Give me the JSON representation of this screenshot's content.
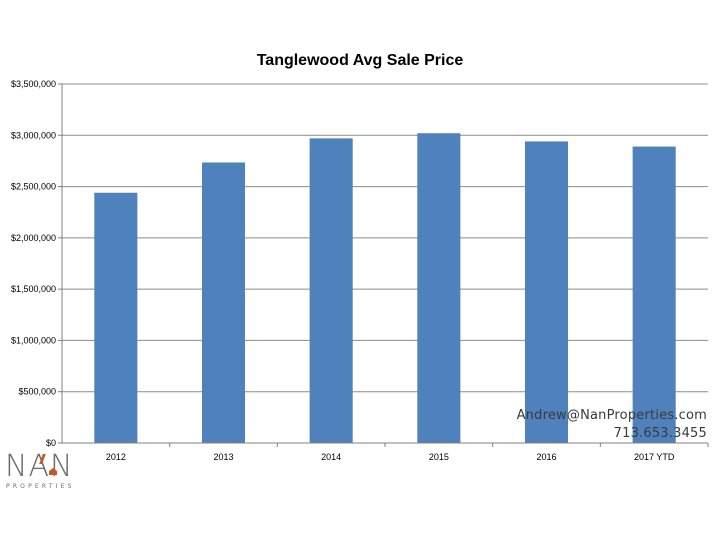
{
  "chart_data": {
    "type": "bar",
    "title": "Tanglewood Avg Sale Price",
    "xlabel": "",
    "ylabel": "",
    "categories": [
      "2012",
      "2013",
      "2014",
      "2015",
      "2016",
      "2017 YTD"
    ],
    "values": [
      2440000,
      2735000,
      2970000,
      3020000,
      2940000,
      2890000
    ],
    "ylim": [
      0,
      3500000
    ],
    "ytick_values": [
      0,
      500000,
      1000000,
      1500000,
      2000000,
      2500000,
      3000000,
      3500000
    ],
    "ytick_labels": [
      "$0",
      "$500,000",
      "$1,000,000",
      "$1,500,000",
      "$2,000,000",
      "$2,500,000",
      "$3,000,000",
      "$3,500,000"
    ],
    "grid": true,
    "legend": "none",
    "bar_color": "#4f81bd"
  },
  "contact": {
    "email": "Andrew@NanProperties.com",
    "phone": "713.653.3455"
  },
  "logo": {
    "letters": "NAN",
    "subtitle": "PROPERTIES",
    "accent_color": "#c45a23"
  }
}
